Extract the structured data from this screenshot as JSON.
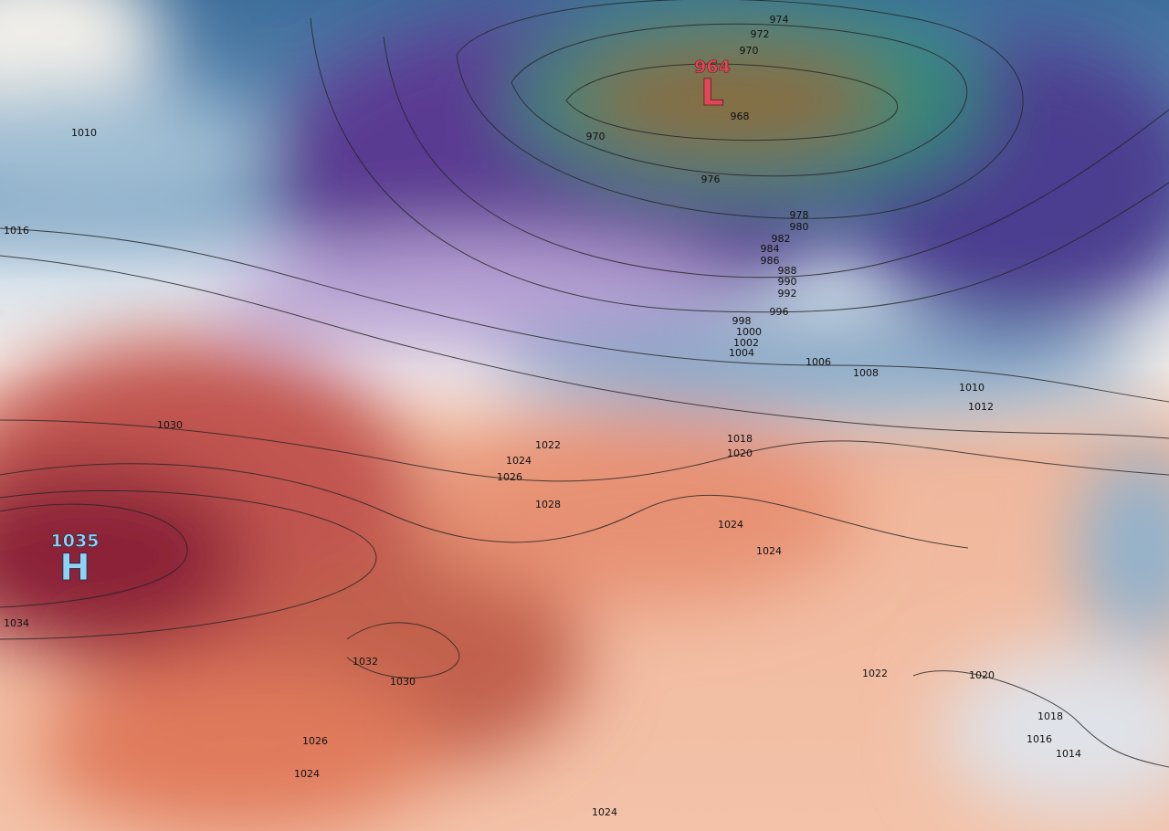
{
  "high": {
    "value": 1035,
    "symbol": "H"
  },
  "low": {
    "value": 964,
    "symbol": "L"
  },
  "isobar_labels": [
    974,
    972,
    970,
    968,
    970,
    1010,
    1016,
    976,
    978,
    980,
    982,
    984,
    986,
    988,
    990,
    992,
    996,
    998,
    1000,
    1002,
    1004,
    1006,
    1008,
    1010,
    1012,
    1018,
    1020,
    1022,
    1024,
    1026,
    1028,
    1030,
    1024,
    1024,
    1034,
    1032,
    1030,
    1026,
    1024,
    1024,
    1022,
    1020,
    1018,
    1016,
    1014
  ]
}
